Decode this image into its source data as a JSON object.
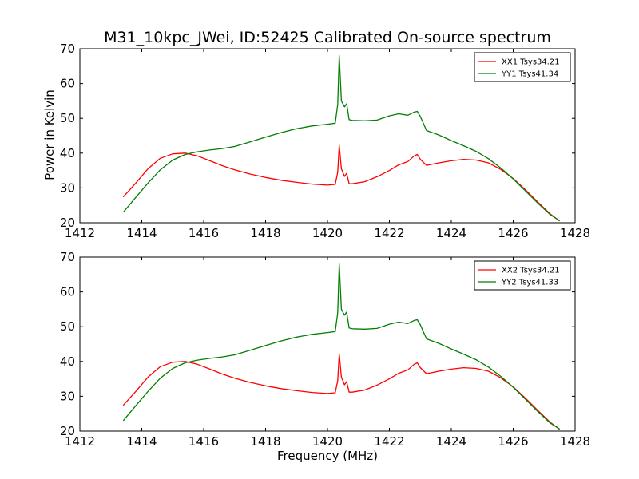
{
  "chart_data": [
    {
      "type": "line",
      "title": "M31_10kpc_JWei, ID:52425 Calibrated On-source spectrum",
      "xlabel": "",
      "ylabel": "Power in Kelvin",
      "xlim": [
        1412,
        1428
      ],
      "ylim": [
        20,
        70
      ],
      "xticks": [
        1412,
        1414,
        1416,
        1418,
        1420,
        1422,
        1424,
        1426,
        1428
      ],
      "yticks": [
        20,
        30,
        40,
        50,
        60,
        70
      ],
      "grid": false,
      "legend_position": "top-right",
      "series": [
        {
          "name": "XX1 Tsys34.21",
          "color": "#ff0000",
          "x": [
            1413.4,
            1413.8,
            1414.2,
            1414.6,
            1415.0,
            1415.4,
            1415.8,
            1416.2,
            1416.6,
            1417.0,
            1417.5,
            1418.0,
            1418.5,
            1419.0,
            1419.5,
            1420.0,
            1420.25,
            1420.33,
            1420.38,
            1420.45,
            1420.55,
            1420.62,
            1420.7,
            1420.8,
            1421.2,
            1421.6,
            1422.0,
            1422.3,
            1422.6,
            1422.8,
            1422.9,
            1423.0,
            1423.2,
            1423.6,
            1424.0,
            1424.4,
            1424.8,
            1425.2,
            1425.6,
            1426.0,
            1426.4,
            1426.8,
            1427.2,
            1427.5
          ],
          "y": [
            27.4,
            31.3,
            35.5,
            38.5,
            39.8,
            40.0,
            39.2,
            37.8,
            36.4,
            35.2,
            34.0,
            33.0,
            32.2,
            31.6,
            31.1,
            30.8,
            31.0,
            34.5,
            42.2,
            35.5,
            33.3,
            34.2,
            31.2,
            31.2,
            31.8,
            33.2,
            35.0,
            36.6,
            37.6,
            39.2,
            39.6,
            38.2,
            36.5,
            37.2,
            37.8,
            38.2,
            38.0,
            37.2,
            35.3,
            32.7,
            29.4,
            25.9,
            22.5,
            20.5
          ]
        },
        {
          "name": "YY1 Tsys41.34",
          "color": "#008000",
          "x": [
            1413.4,
            1413.8,
            1414.2,
            1414.6,
            1415.0,
            1415.4,
            1415.8,
            1416.2,
            1416.6,
            1417.0,
            1417.5,
            1418.0,
            1418.5,
            1419.0,
            1419.5,
            1420.0,
            1420.25,
            1420.33,
            1420.38,
            1420.45,
            1420.55,
            1420.62,
            1420.7,
            1420.8,
            1421.2,
            1421.6,
            1422.0,
            1422.3,
            1422.6,
            1422.8,
            1422.9,
            1423.0,
            1423.2,
            1423.6,
            1424.0,
            1424.4,
            1424.8,
            1425.2,
            1425.6,
            1426.0,
            1426.4,
            1426.8,
            1427.2,
            1427.5
          ],
          "y": [
            23.0,
            27.2,
            31.4,
            35.2,
            38.0,
            39.6,
            40.4,
            40.9,
            41.3,
            41.9,
            43.2,
            44.6,
            45.9,
            47.0,
            47.8,
            48.3,
            48.6,
            54.0,
            68.0,
            55.0,
            53.3,
            54.2,
            49.6,
            49.4,
            49.3,
            49.5,
            50.7,
            51.3,
            50.9,
            51.8,
            52.0,
            50.5,
            46.5,
            45.2,
            43.6,
            42.1,
            40.5,
            38.4,
            35.7,
            32.6,
            29.1,
            25.6,
            22.3,
            20.6
          ]
        }
      ]
    },
    {
      "type": "line",
      "title": "",
      "xlabel": "Frequency (MHz)",
      "ylabel": "",
      "xlim": [
        1412,
        1428
      ],
      "ylim": [
        20,
        70
      ],
      "xticks": [
        1412,
        1414,
        1416,
        1418,
        1420,
        1422,
        1424,
        1426,
        1428
      ],
      "yticks": [
        20,
        30,
        40,
        50,
        60,
        70
      ],
      "grid": false,
      "legend_position": "top-right",
      "series": [
        {
          "name": "XX2 Tsys34.21",
          "color": "#ff0000",
          "x": [
            1413.4,
            1413.8,
            1414.2,
            1414.6,
            1415.0,
            1415.4,
            1415.8,
            1416.2,
            1416.6,
            1417.0,
            1417.5,
            1418.0,
            1418.5,
            1419.0,
            1419.5,
            1420.0,
            1420.25,
            1420.33,
            1420.38,
            1420.45,
            1420.55,
            1420.62,
            1420.7,
            1420.8,
            1421.2,
            1421.6,
            1422.0,
            1422.3,
            1422.6,
            1422.8,
            1422.9,
            1423.0,
            1423.2,
            1423.6,
            1424.0,
            1424.4,
            1424.8,
            1425.2,
            1425.6,
            1426.0,
            1426.4,
            1426.8,
            1427.2,
            1427.5
          ],
          "y": [
            27.4,
            31.3,
            35.5,
            38.5,
            39.8,
            40.0,
            39.2,
            37.8,
            36.4,
            35.2,
            34.0,
            33.0,
            32.2,
            31.6,
            31.1,
            30.8,
            31.0,
            34.5,
            42.2,
            35.5,
            33.3,
            34.2,
            31.2,
            31.2,
            31.8,
            33.2,
            35.0,
            36.6,
            37.6,
            39.2,
            39.6,
            38.2,
            36.5,
            37.2,
            37.8,
            38.2,
            38.0,
            37.2,
            35.3,
            32.7,
            29.4,
            25.9,
            22.5,
            20.5
          ]
        },
        {
          "name": "YY2 Tsys41.33",
          "color": "#008000",
          "x": [
            1413.4,
            1413.8,
            1414.2,
            1414.6,
            1415.0,
            1415.4,
            1415.8,
            1416.2,
            1416.6,
            1417.0,
            1417.5,
            1418.0,
            1418.5,
            1419.0,
            1419.5,
            1420.0,
            1420.25,
            1420.33,
            1420.38,
            1420.45,
            1420.55,
            1420.62,
            1420.7,
            1420.8,
            1421.2,
            1421.6,
            1422.0,
            1422.3,
            1422.6,
            1422.8,
            1422.9,
            1423.0,
            1423.2,
            1423.6,
            1424.0,
            1424.4,
            1424.8,
            1425.2,
            1425.6,
            1426.0,
            1426.4,
            1426.8,
            1427.2,
            1427.5
          ],
          "y": [
            23.0,
            27.2,
            31.4,
            35.2,
            38.0,
            39.6,
            40.4,
            40.9,
            41.3,
            41.9,
            43.2,
            44.6,
            45.9,
            47.0,
            47.8,
            48.3,
            48.6,
            54.0,
            68.0,
            55.0,
            53.3,
            54.2,
            49.6,
            49.4,
            49.3,
            49.5,
            50.7,
            51.3,
            50.9,
            51.8,
            52.0,
            50.5,
            46.5,
            45.2,
            43.6,
            42.1,
            40.5,
            38.4,
            35.7,
            32.6,
            29.1,
            25.6,
            22.3,
            20.6
          ]
        }
      ]
    }
  ]
}
